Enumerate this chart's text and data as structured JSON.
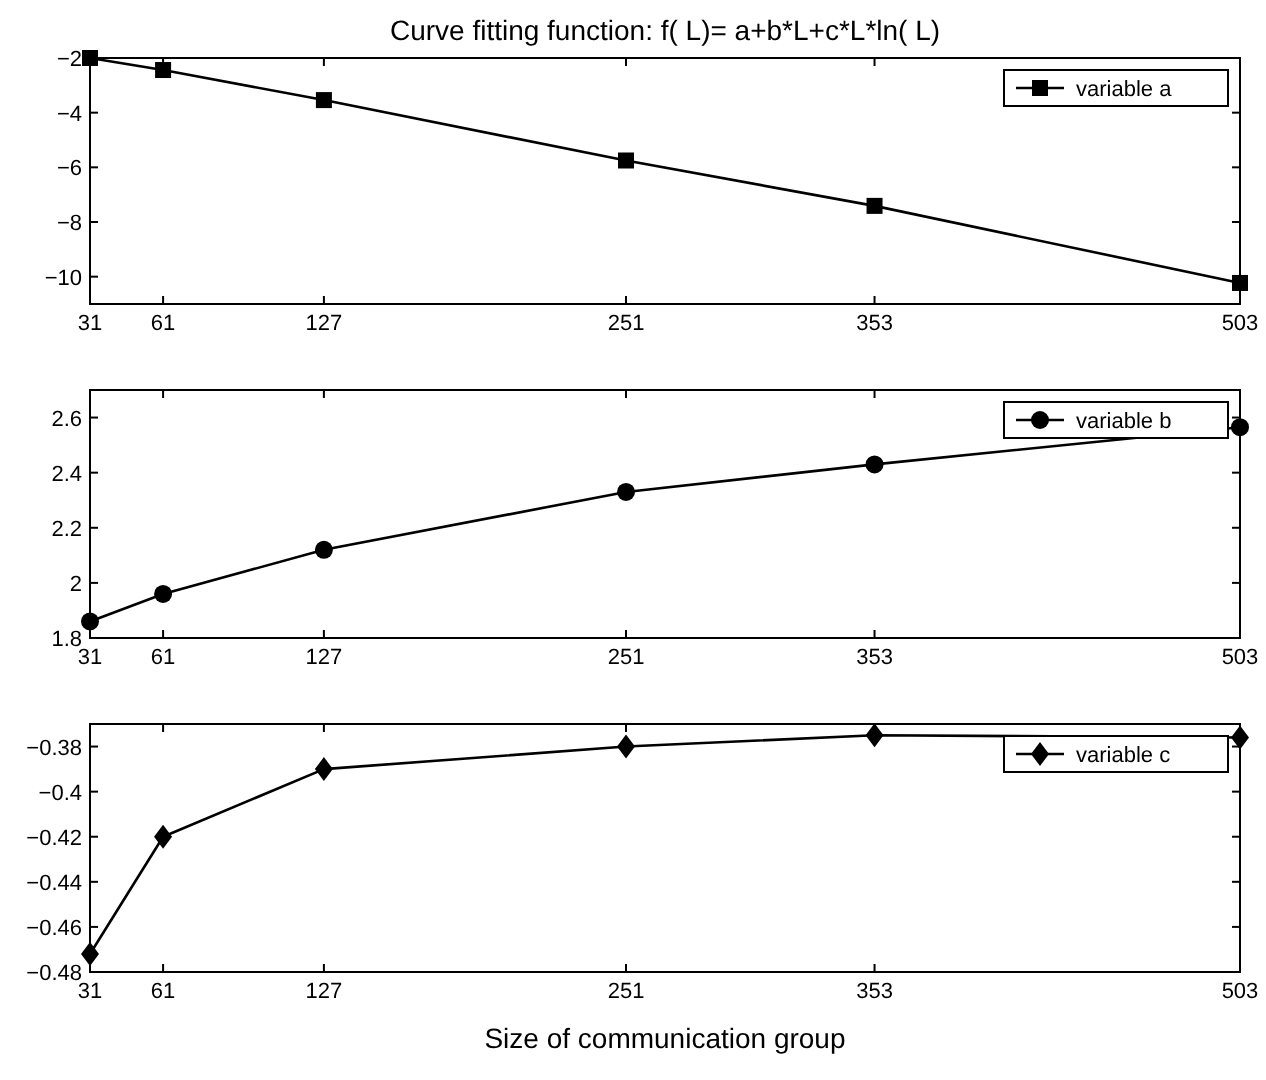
{
  "chart_data": [
    {
      "type": "line",
      "title": "Curve fitting function:  f( L)= a+b*L+c*L*ln( L)",
      "x": [
        31,
        61,
        127,
        251,
        353,
        503
      ],
      "series": [
        {
          "name": "variable  a",
          "color": "#000000",
          "values": [
            -2,
            -2.44,
            -3.54,
            -5.75,
            -7.41,
            -10.23
          ]
        }
      ],
      "xlim": [
        31,
        503
      ],
      "xticks": [
        31,
        61,
        127,
        251,
        353,
        503
      ],
      "ylim": [
        -11,
        -2
      ],
      "yticks": [
        -10,
        -8,
        -6,
        -4,
        -2
      ],
      "marker": "square",
      "line_style": "solid",
      "legend": "top right",
      "grid": false
    },
    {
      "type": "line",
      "x": [
        31,
        61,
        127,
        251,
        353,
        503
      ],
      "series": [
        {
          "name": "variable  b",
          "color": "#000000",
          "values": [
            1.86,
            1.96,
            2.12,
            2.33,
            2.43,
            2.565
          ]
        }
      ],
      "xlim": [
        31,
        503
      ],
      "xticks": [
        31,
        61,
        127,
        251,
        353,
        503
      ],
      "ylim": [
        1.8,
        2.7
      ],
      "yticks": [
        1.8,
        2,
        2.2,
        2.4,
        2.6
      ],
      "marker": "circle",
      "line_style": "solid",
      "legend": "top right",
      "grid": false
    },
    {
      "type": "line",
      "xlabel": "Size of communication group",
      "x": [
        31,
        61,
        127,
        251,
        353,
        503
      ],
      "series": [
        {
          "name": "variable  c",
          "color": "#000000",
          "values": [
            -0.472,
            -0.42,
            -0.39,
            -0.38,
            -0.375,
            -0.376
          ]
        }
      ],
      "xlim": [
        31,
        503
      ],
      "xticks": [
        31,
        61,
        127,
        251,
        353,
        503
      ],
      "ylim": [
        -0.48,
        -0.37
      ],
      "yticks": [
        -0.48,
        -0.46,
        -0.44,
        -0.42,
        -0.4,
        -0.38
      ],
      "marker": "diamond",
      "line_style": "solid",
      "legend": "top right",
      "grid": false
    }
  ]
}
